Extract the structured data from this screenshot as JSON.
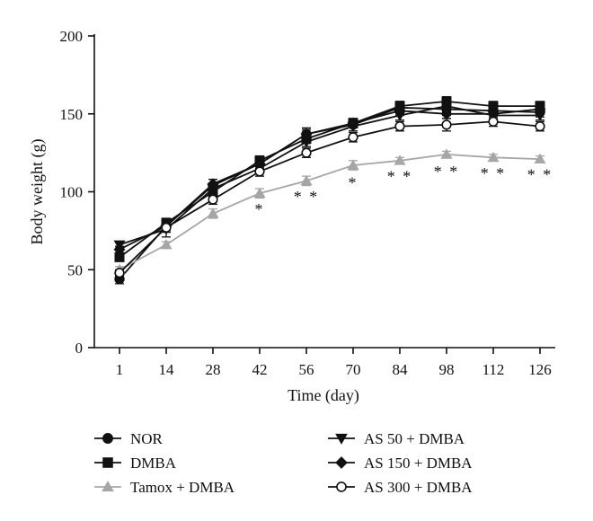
{
  "chart_data": {
    "type": "line",
    "xlabel": "Time (day)",
    "ylabel": "Body weight (g)",
    "ylim": [
      0,
      200
    ],
    "y_ticks": [
      0,
      50,
      100,
      150,
      200
    ],
    "x": [
      1,
      14,
      28,
      42,
      56,
      70,
      84,
      98,
      112,
      126
    ],
    "grid": false,
    "legend_position": "bottom",
    "series": [
      {
        "name": "NOR",
        "marker": "circle-filled",
        "color": "#111111",
        "values": [
          44,
          78,
          104,
          118,
          137,
          143,
          154,
          153,
          152,
          151
        ],
        "err": [
          3,
          3,
          4,
          3,
          4,
          4,
          4,
          4,
          3,
          3
        ]
      },
      {
        "name": "DMBA",
        "marker": "square-filled",
        "color": "#111111",
        "values": [
          58,
          80,
          100,
          120,
          134,
          144,
          155,
          158,
          155,
          155
        ],
        "err": [
          2,
          3,
          3,
          3,
          3,
          3,
          3,
          3,
          3,
          3
        ]
      },
      {
        "name": "Tamox + DMBA",
        "marker": "triangle-up-filled",
        "color": "#a6a6a6",
        "values": [
          50,
          66,
          86,
          99,
          107,
          117,
          120,
          124,
          122,
          121
        ],
        "err": [
          2,
          2,
          3,
          3,
          3,
          3,
          2,
          2,
          2,
          2
        ]
      },
      {
        "name": "AS 50 + DMBA",
        "marker": "triangle-down-filled",
        "color": "#111111",
        "values": [
          66,
          76,
          102,
          115,
          132,
          142,
          149,
          155,
          149,
          149
        ],
        "err": [
          2,
          5,
          3,
          3,
          3,
          3,
          3,
          4,
          3,
          3
        ]
      },
      {
        "name": "AS 150 + DMBA",
        "marker": "diamond-filled",
        "color": "#111111",
        "values": [
          63,
          78,
          105,
          118,
          137,
          144,
          152,
          150,
          150,
          153
        ],
        "err": [
          2,
          3,
          3,
          3,
          3,
          3,
          3,
          3,
          3,
          3
        ]
      },
      {
        "name": "AS 300 + DMBA",
        "marker": "circle-open",
        "color": "#111111",
        "values": [
          48,
          77,
          95,
          113,
          125,
          135,
          142,
          143,
          145,
          142
        ],
        "err": [
          2,
          3,
          3,
          3,
          3,
          3,
          3,
          4,
          3,
          3
        ]
      }
    ],
    "annotations": [
      {
        "x": 42,
        "text": "*",
        "y": 90
      },
      {
        "x": 56,
        "text": "* *",
        "y": 98
      },
      {
        "x": 70,
        "text": "*",
        "y": 107
      },
      {
        "x": 84,
        "text": "* *",
        "y": 111
      },
      {
        "x": 98,
        "text": "* *",
        "y": 114
      },
      {
        "x": 112,
        "text": "* *",
        "y": 113
      },
      {
        "x": 126,
        "text": "* *",
        "y": 112
      }
    ]
  }
}
